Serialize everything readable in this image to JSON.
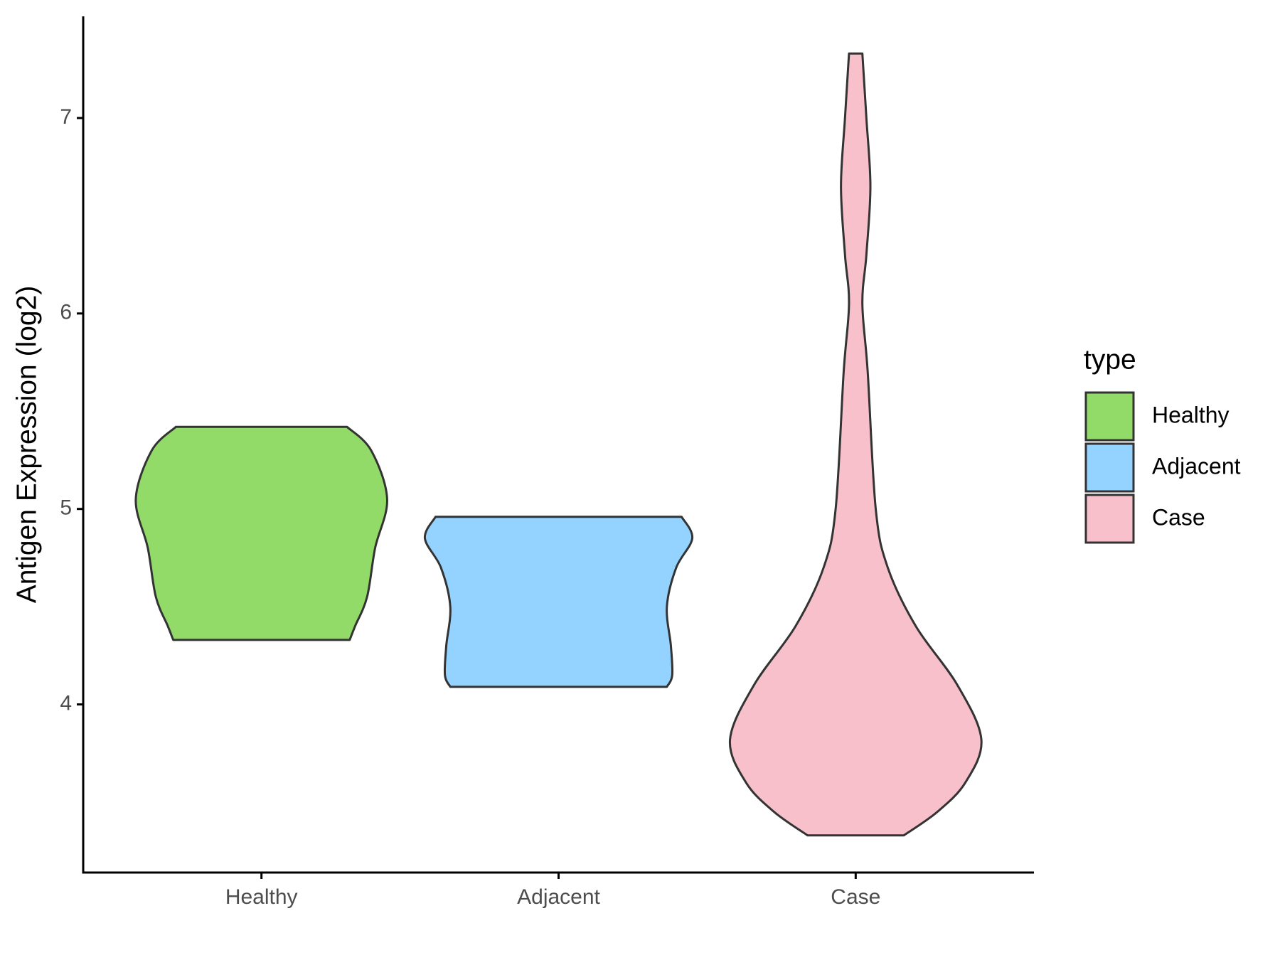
{
  "chart_data": {
    "type": "violin",
    "y_label": "Antigen Expression (log2)",
    "categories": [
      "Healthy",
      "Adjacent",
      "Case"
    ],
    "ylim": [
      3.14,
      7.52
    ],
    "yticks": [
      4,
      5,
      6,
      7
    ],
    "legend_title": "type",
    "legend_position": "right",
    "series": [
      {
        "name": "Healthy",
        "color": "#93db69",
        "y": [
          4.33,
          4.4,
          4.55,
          4.8,
          5.05,
          5.3,
          5.42
        ],
        "width": [
          0.66,
          0.7,
          0.79,
          0.85,
          0.94,
          0.82,
          0.64
        ]
      },
      {
        "name": "Adjacent",
        "color": "#94d3ff",
        "y": [
          4.09,
          4.15,
          4.3,
          4.5,
          4.7,
          4.85,
          4.96
        ],
        "width": [
          0.81,
          0.85,
          0.84,
          0.81,
          0.88,
          1.0,
          0.92
        ]
      },
      {
        "name": "Case",
        "color": "#f7c0cb",
        "y": [
          3.33,
          3.45,
          3.6,
          3.82,
          4.1,
          4.4,
          4.7,
          5.0,
          5.7,
          6.05,
          6.3,
          6.65,
          7.0,
          7.33
        ],
        "width": [
          0.36,
          0.61,
          0.82,
          0.94,
          0.76,
          0.45,
          0.24,
          0.15,
          0.09,
          0.05,
          0.08,
          0.11,
          0.08,
          0.05
        ]
      }
    ]
  }
}
